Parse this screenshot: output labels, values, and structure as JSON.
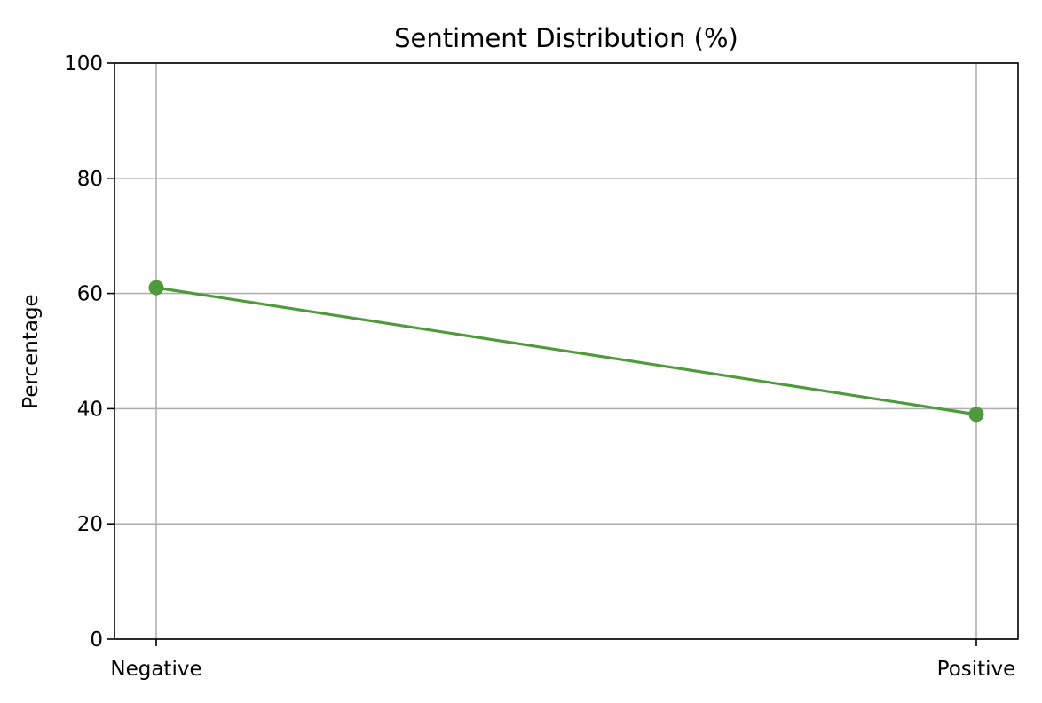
{
  "chart_data": {
    "type": "line",
    "title": "Sentiment Distribution (%)",
    "xlabel": "",
    "ylabel": "Percentage",
    "categories": [
      "Negative",
      "Positive"
    ],
    "series": [
      {
        "values": [
          61,
          39
        ],
        "color": "#4f9a3c",
        "marker": "circle"
      }
    ],
    "ylim": [
      0,
      100
    ],
    "yticks": [
      0,
      20,
      40,
      60,
      80,
      100
    ],
    "grid": true
  }
}
